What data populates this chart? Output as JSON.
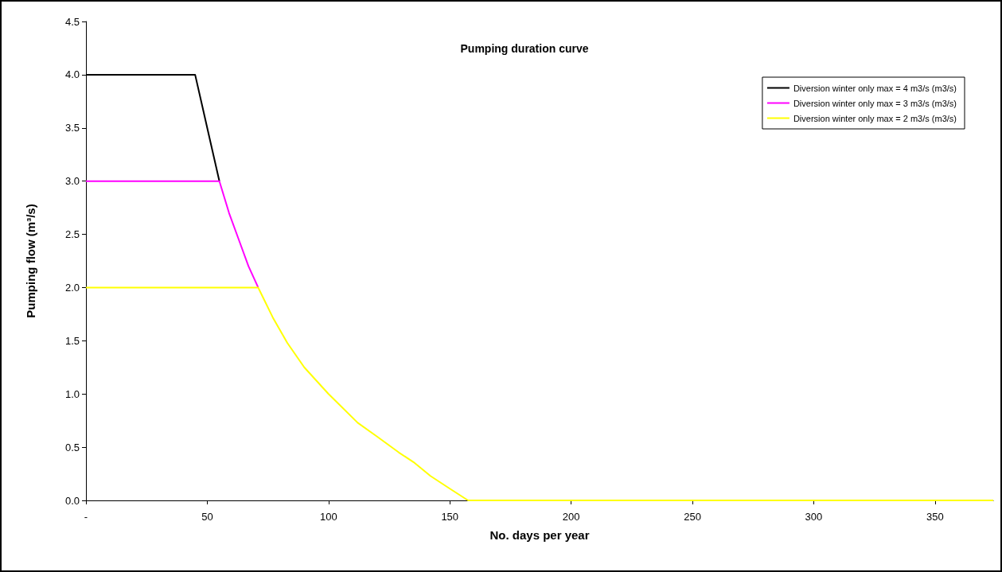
{
  "chart_data": {
    "type": "line",
    "title": "Pumping duration curve",
    "xlabel": "No. days per year",
    "ylabel": "Pumping flow (m³/s)",
    "xlim": [
      0,
      374
    ],
    "xticks": [
      {
        "value": 0,
        "label": "-"
      },
      50,
      100,
      150,
      200,
      250,
      300,
      350
    ],
    "ylim": [
      0,
      4.5
    ],
    "yticks": [
      {
        "value": 0,
        "label": "0.0"
      },
      0.5,
      {
        "value": 1,
        "label": "1.0"
      },
      1.5,
      {
        "value": 2,
        "label": "2.0"
      },
      2.5,
      {
        "value": 3,
        "label": "3.0"
      },
      3.5,
      {
        "value": 4,
        "label": "4.0"
      },
      4.5
    ],
    "grid": false,
    "legend": "top right",
    "marker": "none",
    "line_style": "solid",
    "series": [
      {
        "name": "Diversion winter only max = 4 m3/s (m3/s)",
        "color": "#000000",
        "x": [
          0,
          45,
          48,
          51,
          53,
          55
        ],
        "values": [
          4,
          4,
          3.7,
          3.4,
          3.2,
          3
        ]
      },
      {
        "name": "Diversion winter only max = 3 m3/s (m3/s)",
        "color": "#ff00ff",
        "x": [
          0,
          55,
          59,
          63,
          67,
          71
        ],
        "values": [
          3,
          3,
          2.7,
          2.45,
          2.2,
          2
        ]
      },
      {
        "name": "Diversion winter only max = 2 m3/s (m3/s)",
        "color": "#ffff00",
        "x": [
          0,
          71,
          77,
          83,
          90,
          100,
          112,
          120,
          129,
          135,
          142,
          150,
          157.5,
          374
        ],
        "values": [
          2,
          2,
          1.72,
          1.48,
          1.25,
          1,
          0.73,
          0.6,
          0.45,
          0.36,
          0.23,
          0.11,
          0,
          0
        ]
      }
    ]
  }
}
